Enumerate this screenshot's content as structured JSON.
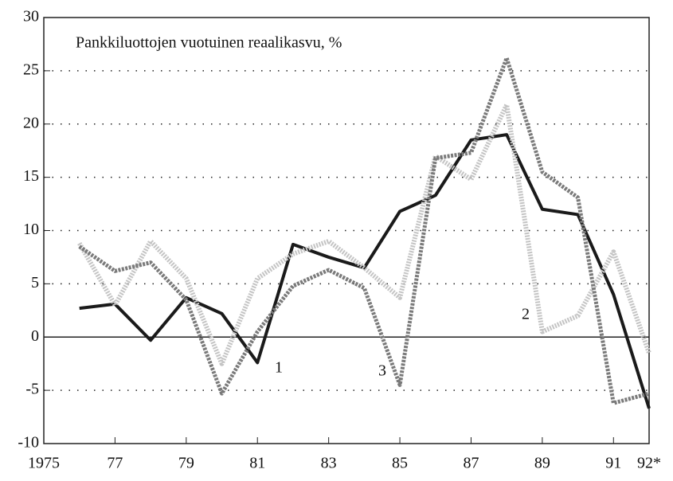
{
  "chart_data": {
    "type": "line",
    "title": "Pankkiluottojen vuotuinen reaalikasvu, %",
    "x": [
      1976,
      1977,
      1978,
      1979,
      1980,
      1981,
      1982,
      1983,
      1984,
      1985,
      1986,
      1987,
      1988,
      1989,
      1990,
      1991,
      1992
    ],
    "series": [
      {
        "name": "1",
        "color": "#1a1a1a",
        "values": [
          2.7,
          3.1,
          -0.3,
          3.7,
          2.2,
          -2.4,
          8.7,
          7.5,
          6.5,
          11.8,
          13.3,
          18.5,
          19.0,
          12.0,
          11.5,
          4.0,
          -6.7
        ]
      },
      {
        "name": "2",
        "color": "#c4c4c4",
        "values": [
          8.8,
          3.0,
          9.0,
          5.5,
          -2.5,
          5.5,
          7.8,
          9.0,
          6.5,
          3.7,
          17.0,
          14.8,
          21.8,
          0.5,
          2.0,
          8.0,
          -1.5
        ]
      },
      {
        "name": "3",
        "color": "#7a7a7a",
        "values": [
          8.5,
          6.2,
          7.0,
          3.5,
          -5.3,
          0.5,
          4.8,
          6.3,
          4.6,
          -4.5,
          16.8,
          17.3,
          26.2,
          15.5,
          13.1,
          -6.2,
          -5.3
        ]
      }
    ],
    "xlim": [
      1975,
      1992
    ],
    "xticks": [
      {
        "value": 1975,
        "label": "1975"
      },
      {
        "value": 1977,
        "label": "77"
      },
      {
        "value": 1979,
        "label": "79"
      },
      {
        "value": 1981,
        "label": "81"
      },
      {
        "value": 1983,
        "label": "83"
      },
      {
        "value": 1985,
        "label": "85"
      },
      {
        "value": 1987,
        "label": "87"
      },
      {
        "value": 1989,
        "label": "89"
      },
      {
        "value": 1991,
        "label": "91"
      },
      {
        "value": 1992,
        "label": "92*"
      }
    ],
    "ylim": [
      -10,
      30
    ],
    "yticks": [
      -10,
      -5,
      0,
      5,
      10,
      15,
      20,
      25,
      30
    ],
    "grid": true
  }
}
